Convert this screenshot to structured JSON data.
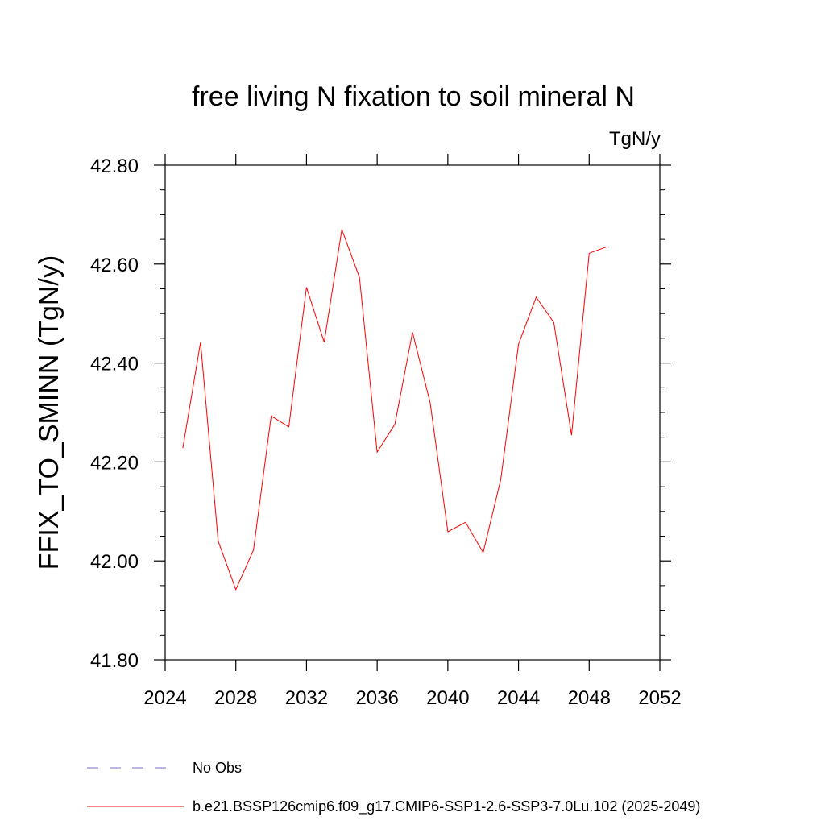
{
  "chart_data": {
    "type": "line",
    "title": "free living N fixation to soil mineral N",
    "units": "TgN/y",
    "ylabel": "FFIX_TO_SMINN  (TgN/y)",
    "xlabel": "",
    "xlim": [
      2024,
      2052
    ],
    "ylim": [
      41.8,
      42.8
    ],
    "xticks": [
      "2024",
      "2028",
      "2032",
      "2036",
      "2040",
      "2044",
      "2048",
      "2052"
    ],
    "yticks": [
      "41.80",
      "42.00",
      "42.20",
      "42.40",
      "42.60",
      "42.80"
    ],
    "grid": false,
    "legend_position": "bottom",
    "series": [
      {
        "name": "b.e21.BSSP126cmip6.f09_g17.CMIP6-SSP1-2.6-SSP3-7.0Lu.102 (2025-2049)",
        "color": "#ff0000",
        "x": [
          2025,
          2026,
          2027,
          2028,
          2029,
          2030,
          2031,
          2032,
          2033,
          2034,
          2035,
          2036,
          2037,
          2038,
          2039,
          2040,
          2041,
          2042,
          2043,
          2044,
          2045,
          2046,
          2047,
          2048,
          2049
        ],
        "y": [
          42.228,
          42.442,
          42.04,
          41.942,
          42.022,
          42.293,
          42.271,
          42.553,
          42.442,
          42.67,
          42.573,
          42.22,
          42.276,
          42.462,
          42.32,
          42.059,
          42.078,
          42.017,
          42.165,
          42.438,
          42.533,
          42.482,
          42.254,
          42.622,
          42.635
        ]
      }
    ],
    "legend": [
      {
        "label": "No Obs",
        "color": "#7b68c8",
        "style": "dashed"
      },
      {
        "label": "b.e21.BSSP126cmip6.f09_g17.CMIP6-SSP1-2.6-SSP3-7.0Lu.102 (2025-2049)",
        "color": "#ff0000",
        "style": "solid"
      }
    ]
  }
}
